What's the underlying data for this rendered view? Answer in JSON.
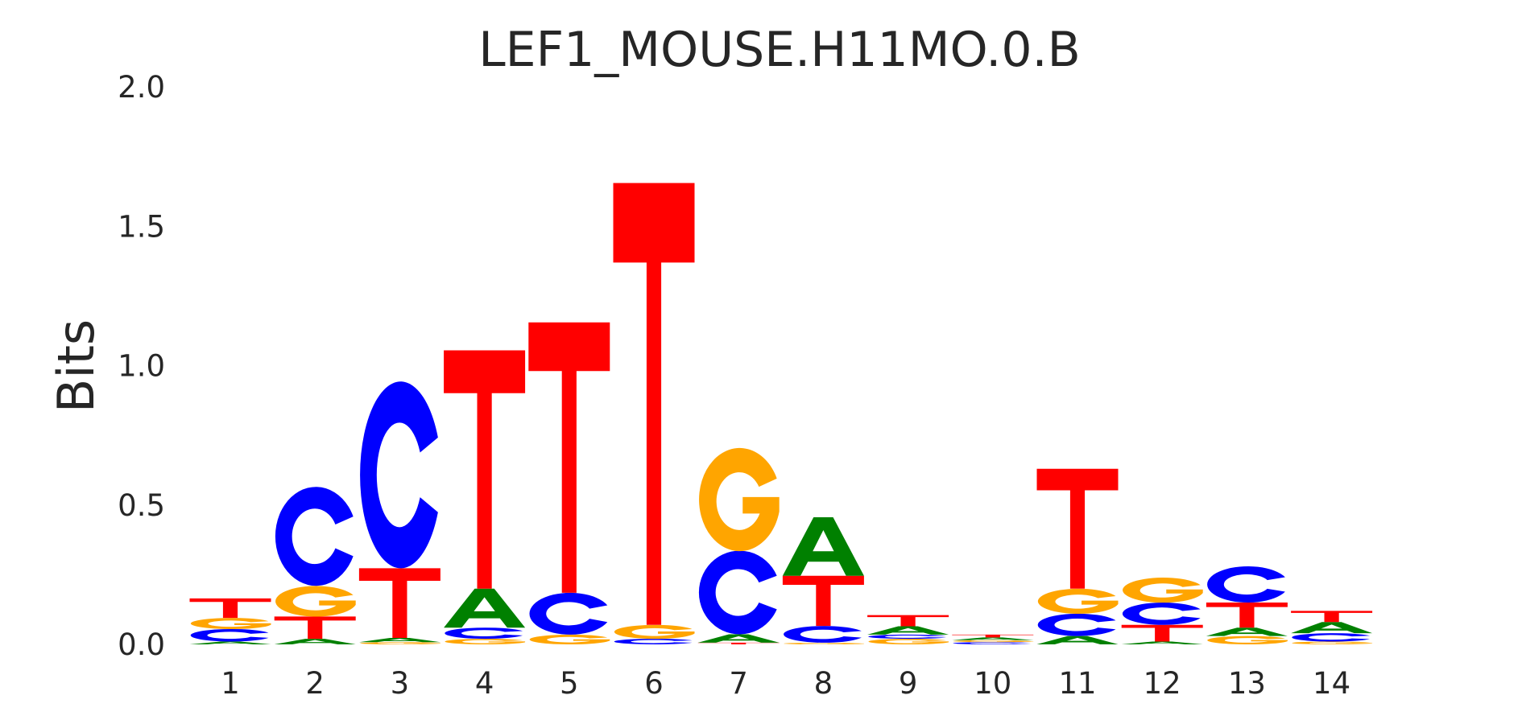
{
  "chart_data": {
    "type": "sequence-logo",
    "title": "LEF1_MOUSE.H11MO.0.B",
    "xlabel": "",
    "ylabel": "Bits",
    "ylim": [
      0,
      2.0
    ],
    "yticks": [
      "0.0",
      "0.5",
      "1.0",
      "1.5",
      "2.0"
    ],
    "ytick_values": [
      0,
      0.5,
      1.0,
      1.5,
      2.0
    ],
    "categories": [
      "1",
      "2",
      "3",
      "4",
      "5",
      "6",
      "7",
      "8",
      "9",
      "10",
      "11",
      "12",
      "13",
      "14"
    ],
    "colors": {
      "A": "#008000",
      "C": "#0000ff",
      "G": "#ffa500",
      "T": "#ff0000"
    },
    "positions": [
      [
        [
          "A",
          0.01
        ],
        [
          "C",
          0.045
        ],
        [
          "G",
          0.04
        ],
        [
          "T",
          0.07
        ]
      ],
      [
        [
          "A",
          0.02
        ],
        [
          "T",
          0.08
        ],
        [
          "G",
          0.11
        ],
        [
          "C",
          0.355
        ]
      ],
      [
        [
          "G",
          0.008
        ],
        [
          "A",
          0.015
        ],
        [
          "T",
          0.25
        ],
        [
          "C",
          0.67
        ]
      ],
      [
        [
          "G",
          0.02
        ],
        [
          "C",
          0.04
        ],
        [
          "A",
          0.14
        ],
        [
          "T",
          0.855
        ]
      ],
      [
        [
          "G",
          0.035
        ],
        [
          "C",
          0.15
        ],
        [
          "T",
          0.97
        ]
      ],
      [
        [
          "C",
          0.02
        ],
        [
          "G",
          0.05
        ],
        [
          "T",
          1.585
        ]
      ],
      [
        [
          "T",
          0.006
        ],
        [
          "A",
          0.03
        ],
        [
          "C",
          0.3
        ],
        [
          "G",
          0.37
        ]
      ],
      [
        [
          "G",
          0.006
        ],
        [
          "C",
          0.06
        ],
        [
          "T",
          0.18
        ],
        [
          "A",
          0.21
        ]
      ],
      [
        [
          "G",
          0.02
        ],
        [
          "C",
          0.015
        ],
        [
          "A",
          0.03
        ],
        [
          "T",
          0.04
        ]
      ],
      [
        [
          "C",
          0.008
        ],
        [
          "G",
          0.007
        ],
        [
          "A",
          0.01
        ],
        [
          "T",
          0.01
        ]
      ],
      [
        [
          "A",
          0.03
        ],
        [
          "C",
          0.08
        ],
        [
          "G",
          0.09
        ],
        [
          "T",
          0.43
        ]
      ],
      [
        [
          "A",
          0.01
        ],
        [
          "T",
          0.06
        ],
        [
          "C",
          0.08
        ],
        [
          "G",
          0.09
        ]
      ],
      [
        [
          "G",
          0.03
        ],
        [
          "A",
          0.03
        ],
        [
          "T",
          0.09
        ],
        [
          "C",
          0.13
        ]
      ],
      [
        [
          "G",
          0.01
        ],
        [
          "C",
          0.03
        ],
        [
          "A",
          0.04
        ],
        [
          "T",
          0.04
        ]
      ]
    ]
  }
}
